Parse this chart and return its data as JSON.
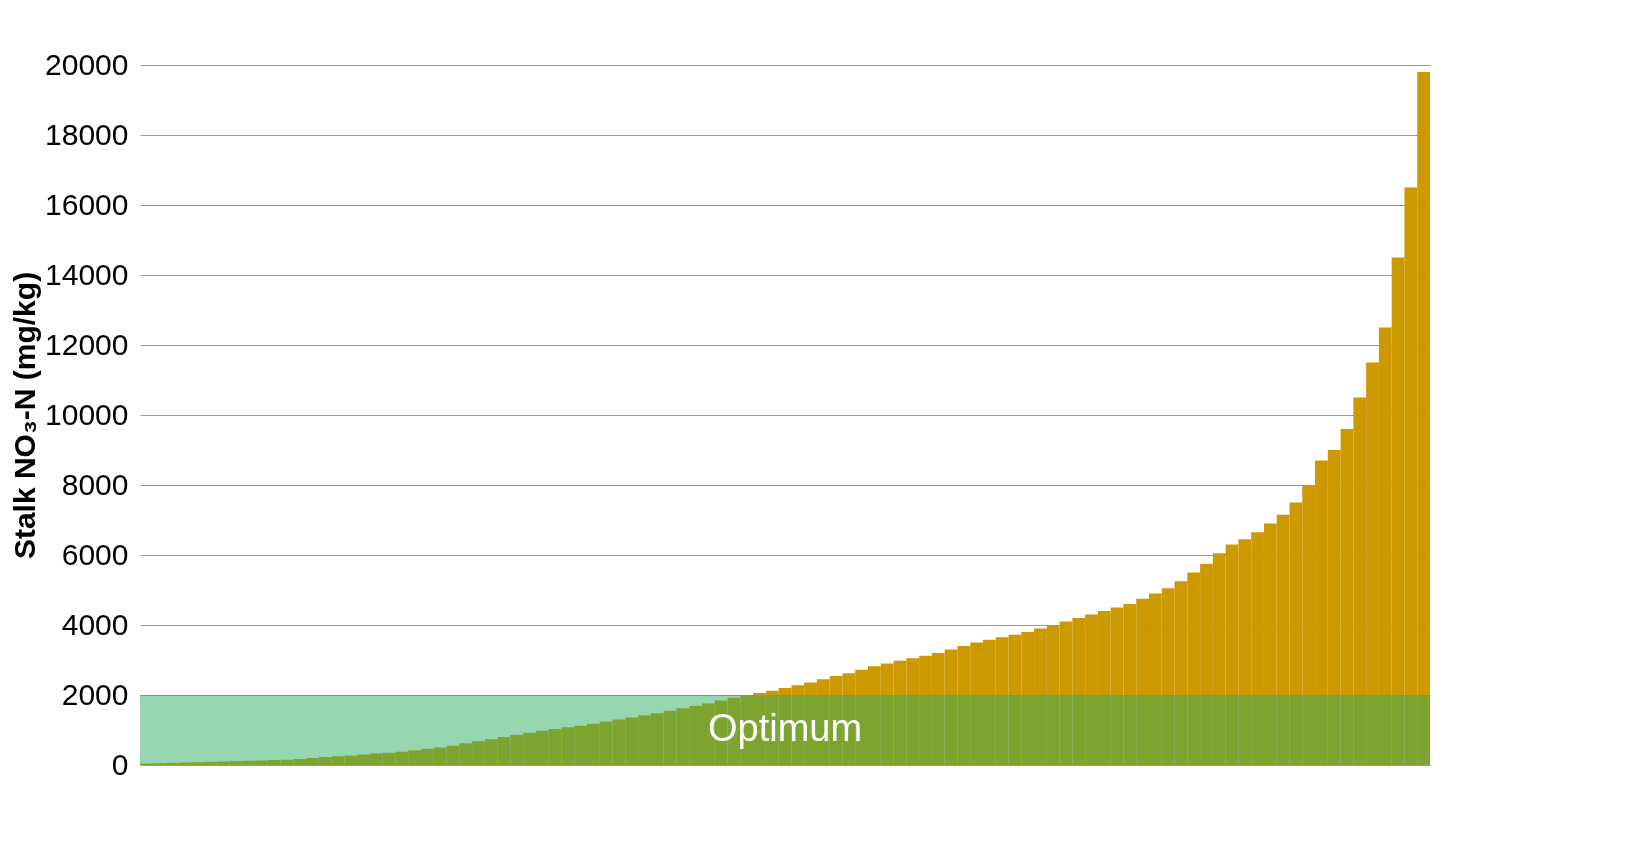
{
  "chart_data": {
    "type": "bar",
    "ylabel": "Stalk NO₃-N (mg/kg)",
    "categories": [
      null,
      null,
      null,
      null,
      null,
      null,
      null,
      null,
      null,
      null,
      null,
      null,
      null,
      null,
      null,
      null,
      null,
      null,
      null,
      null,
      null,
      null,
      null,
      null,
      null,
      null,
      null,
      null,
      null,
      null,
      null,
      null,
      null,
      null,
      null,
      null,
      null,
      null,
      null,
      null,
      null,
      null,
      null,
      null,
      null,
      null,
      null,
      null,
      null,
      null,
      null,
      null,
      null,
      null,
      null,
      null,
      null,
      null,
      null,
      null,
      null,
      null,
      null,
      null,
      null,
      null,
      null,
      null,
      null,
      null,
      null,
      null,
      null,
      null,
      null,
      null,
      null,
      null,
      null,
      null,
      null,
      null,
      null,
      null,
      null,
      null,
      null,
      null,
      null,
      null,
      null,
      null,
      null,
      null,
      null,
      null,
      null,
      null,
      null,
      null,
      null
    ],
    "series": [
      {
        "color": "#cc9900",
        "values": [
          40,
          50,
          60,
          70,
          80,
          90,
          100,
          110,
          120,
          130,
          140,
          150,
          170,
          200,
          230,
          250,
          270,
          300,
          330,
          350,
          380,
          420,
          460,
          500,
          550,
          620,
          680,
          740,
          800,
          860,
          920,
          980,
          1030,
          1080,
          1120,
          1180,
          1240,
          1300,
          1360,
          1420,
          1480,
          1550,
          1620,
          1690,
          1760,
          1840,
          1920,
          1990,
          2060,
          2120,
          2200,
          2280,
          2360,
          2450,
          2540,
          2620,
          2720,
          2820,
          2900,
          2980,
          3050,
          3120,
          3200,
          3300,
          3400,
          3500,
          3580,
          3650,
          3720,
          3800,
          3900,
          4000,
          4100,
          4200,
          4300,
          4400,
          4500,
          4600,
          4750,
          4900,
          5050,
          5250,
          5500,
          5750,
          6050,
          6300,
          6450,
          6650,
          6900,
          7150,
          7500,
          8000,
          8700,
          9000,
          9600,
          10500,
          11500,
          12500,
          14500,
          16500,
          19800
        ]
      }
    ],
    "ylim": [
      0,
      20000
    ],
    "yticks": [
      0,
      2000,
      4000,
      6000,
      8000,
      10000,
      12000,
      14000,
      16000,
      18000,
      20000
    ],
    "bands": [
      {
        "axis": "y",
        "from": 0,
        "to": 2000,
        "label": "Optimum",
        "color": "#2fb060"
      }
    ],
    "grid": "y",
    "legend": false,
    "tick_labels": "y"
  }
}
